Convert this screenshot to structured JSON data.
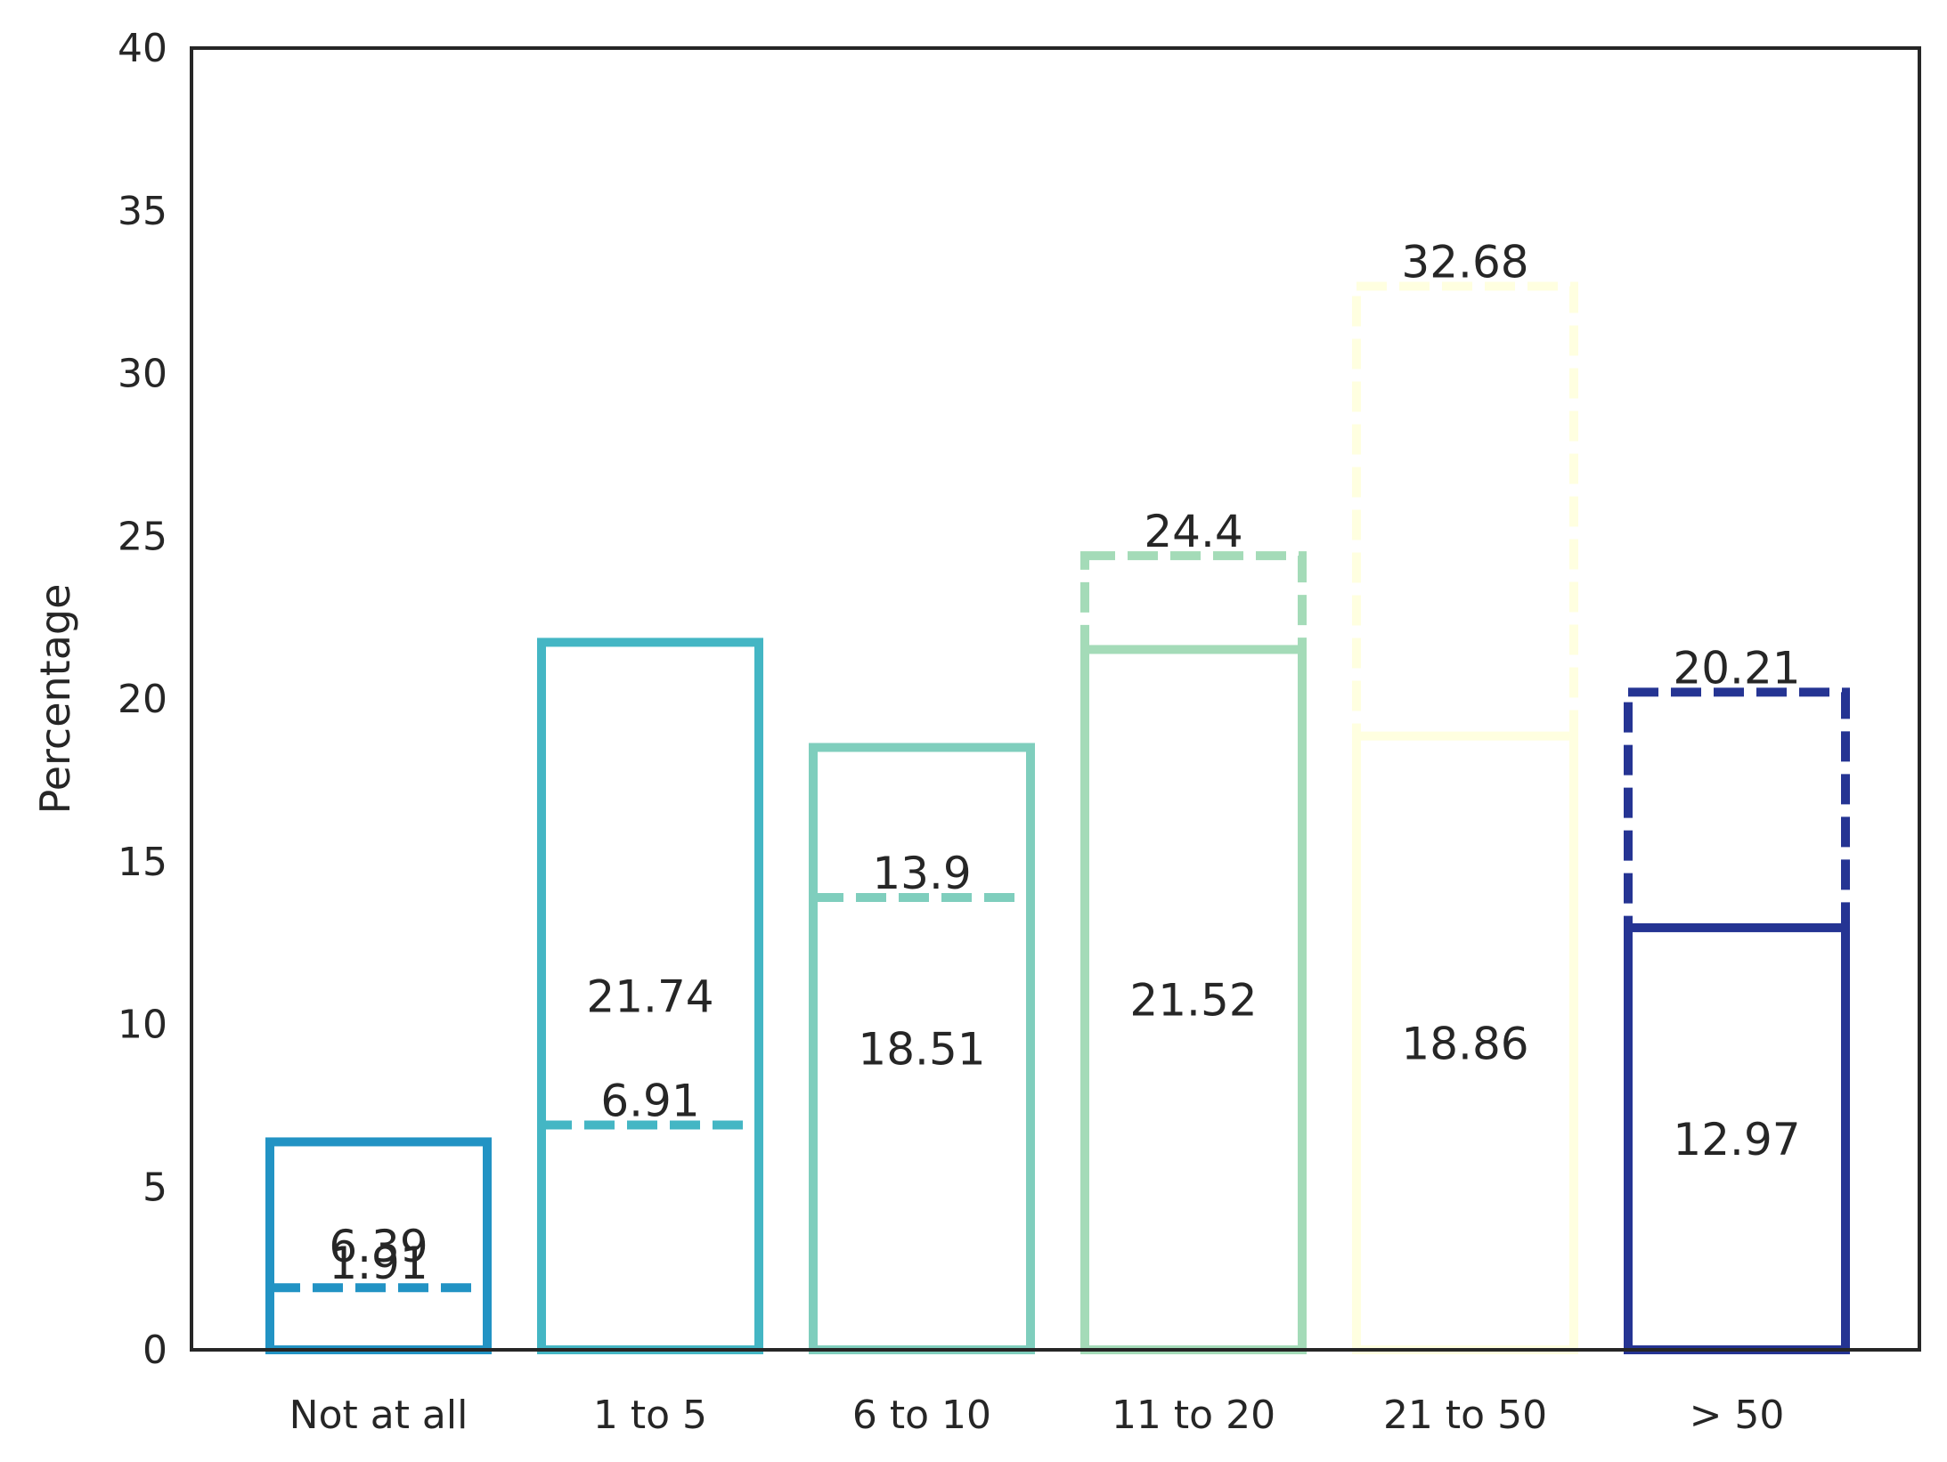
{
  "chart_data": {
    "type": "bar",
    "title": "",
    "xlabel": "",
    "ylabel": "Percentage",
    "ylim": [
      0,
      40
    ],
    "yticks": [
      0,
      5,
      10,
      15,
      20,
      25,
      30,
      35,
      40
    ],
    "grid": false,
    "categories": [
      "Not at all",
      "1 to 5",
      "6 to 10",
      "11 to 20",
      "21 to 50",
      "> 50"
    ],
    "colors": [
      "#2293c4",
      "#44b6c4",
      "#7fcebd",
      "#a4dbb8",
      "#ffffe0",
      "#253493"
    ],
    "series": [
      {
        "style": "solid",
        "values": [
          6.39,
          21.74,
          18.51,
          21.52,
          18.86,
          12.97
        ]
      },
      {
        "style": "dashed",
        "values": [
          1.91,
          6.91,
          13.9,
          24.4,
          32.68,
          20.21
        ]
      }
    ],
    "labels": {
      "solid": [
        "6.39",
        "21.74",
        "18.51",
        "21.52",
        "18.86",
        "12.97"
      ],
      "dashed": [
        "1.91",
        "6.91",
        "13.9",
        "24.4",
        "32.68",
        "20.21"
      ]
    }
  }
}
